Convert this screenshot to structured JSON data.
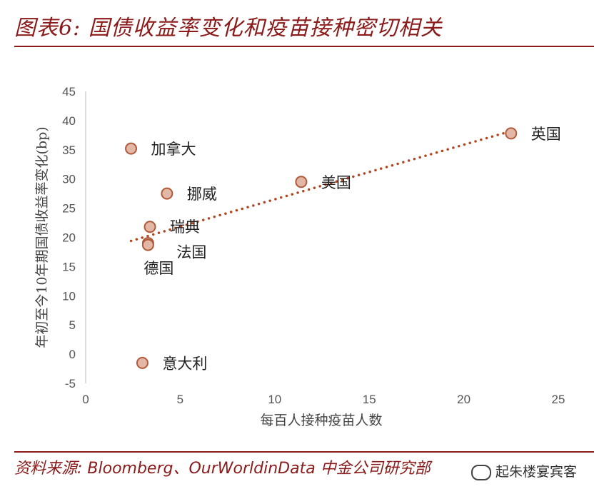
{
  "title": "图表6: 国债收益率变化和疫苗接种密切相关",
  "source": "资料来源: Bloomberg、OurWorldinData 中金公司研究部",
  "watermark": "起朱楼宴宾客",
  "colors": {
    "brand": "#8b1a1a",
    "marker_fill": "#e3b7a6",
    "marker_edge": "#b05a3a",
    "trend": "#b0461f"
  },
  "chart_data": {
    "type": "scatter",
    "xlabel": "每百人接种疫苗人数",
    "ylabel": "年初至今10年期国债收益率变化(bp)",
    "xlim": [
      0,
      25
    ],
    "ylim": [
      -5,
      45
    ],
    "xticks": [
      "0",
      "5",
      "10",
      "15",
      "20",
      "25"
    ],
    "yticks": [
      "45",
      "40",
      "35",
      "30",
      "25",
      "20",
      "15",
      "10",
      "5",
      "0",
      "-5"
    ],
    "points": [
      {
        "label": "英国",
        "x": 22.5,
        "y": 37.8
      },
      {
        "label": "加拿大",
        "x": 2.4,
        "y": 35.2
      },
      {
        "label": "美国",
        "x": 11.4,
        "y": 29.5
      },
      {
        "label": "挪威",
        "x": 4.3,
        "y": 27.5
      },
      {
        "label": "瑞典",
        "x": 3.4,
        "y": 21.8
      },
      {
        "label": "法国",
        "x": 3.3,
        "y": 19.0
      },
      {
        "label": "德国",
        "x": 3.3,
        "y": 18.7
      },
      {
        "label": "意大利",
        "x": 3.0,
        "y": -1.5
      }
    ],
    "trendline": {
      "x": [
        2.4,
        22.5
      ],
      "y": [
        19.4,
        38.2
      ]
    },
    "grid": false
  }
}
